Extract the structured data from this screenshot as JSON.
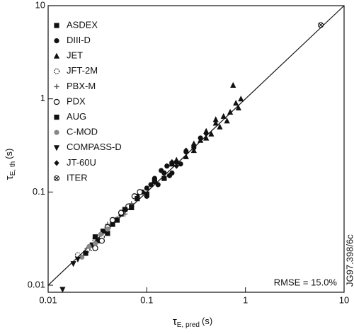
{
  "chart_data": {
    "type": "scatter",
    "x_label": {
      "symbol": "τ",
      "subscript": "E, pred",
      "unit": "(s)"
    },
    "y_label": {
      "symbol": "τ",
      "subscript": "E, th",
      "unit": "(s)"
    },
    "annotations": [
      "RMSE = 15.0%",
      "JG97.398/6c"
    ],
    "xscale": "log",
    "yscale": "log",
    "xlim": [
      0.01,
      10
    ],
    "ylim": [
      0.0084,
      10
    ],
    "xticks": [
      0.01,
      0.1,
      1,
      10
    ],
    "yticks": [
      0.01,
      0.1,
      1,
      10
    ],
    "series": [
      {
        "name": "ASDEX",
        "marker": "square",
        "color": "#111111",
        "x": [
          0.024,
          0.028,
          0.032,
          0.036,
          0.04,
          0.045,
          0.05,
          0.03,
          0.055
        ],
        "values": [
          0.022,
          0.027,
          0.03,
          0.038,
          0.036,
          0.045,
          0.05,
          0.033,
          0.058
        ]
      },
      {
        "name": "DIII-D",
        "marker": "circle",
        "color": "#111111",
        "x": [
          0.06,
          0.07,
          0.08,
          0.09,
          0.1,
          0.11,
          0.12,
          0.13,
          0.15,
          0.17,
          0.2,
          0.22,
          0.25,
          0.3,
          0.14,
          0.16,
          0.18,
          0.1,
          0.12,
          0.35
        ],
        "values": [
          0.065,
          0.07,
          0.09,
          0.1,
          0.11,
          0.12,
          0.13,
          0.12,
          0.16,
          0.15,
          0.21,
          0.2,
          0.27,
          0.3,
          0.17,
          0.19,
          0.16,
          0.09,
          0.14,
          0.38
        ]
      },
      {
        "name": "JET",
        "marker": "triangle",
        "color": "#111111",
        "x": [
          0.2,
          0.25,
          0.3,
          0.35,
          0.4,
          0.45,
          0.5,
          0.55,
          0.6,
          0.7,
          0.8,
          0.85,
          0.9,
          0.5,
          0.4,
          0.65,
          0.3,
          0.75
        ],
        "values": [
          0.22,
          0.24,
          0.33,
          0.36,
          0.45,
          0.42,
          0.55,
          0.5,
          0.65,
          0.72,
          0.9,
          0.8,
          1.0,
          0.6,
          0.38,
          0.58,
          0.28,
          1.4
        ]
      },
      {
        "name": "JFT-2M",
        "marker": "dotted-circle",
        "color": "#111111",
        "x": [
          0.02,
          0.025,
          0.03,
          0.035,
          0.04,
          0.028
        ],
        "values": [
          0.021,
          0.024,
          0.031,
          0.033,
          0.041,
          0.025
        ]
      },
      {
        "name": "PBX-M",
        "marker": "plus",
        "color": "#555555",
        "x": [
          0.04,
          0.05,
          0.06,
          0.07
        ],
        "values": [
          0.045,
          0.052,
          0.058,
          0.075
        ]
      },
      {
        "name": "PDX",
        "marker": "open-circle",
        "color": "#111111",
        "x": [
          0.03,
          0.035,
          0.045,
          0.055,
          0.065,
          0.075,
          0.085,
          0.04
        ],
        "values": [
          0.025,
          0.03,
          0.05,
          0.06,
          0.07,
          0.09,
          0.1,
          0.042
        ]
      },
      {
        "name": "AUG",
        "marker": "square",
        "color": "#111111",
        "x": [
          0.05,
          0.06,
          0.07,
          0.08,
          0.1,
          0.12,
          0.15,
          0.18
        ],
        "values": [
          0.05,
          0.065,
          0.068,
          0.085,
          0.095,
          0.13,
          0.14,
          0.2
        ]
      },
      {
        "name": "C-MOD",
        "marker": "circle",
        "color": "#888888",
        "x": [
          0.022,
          0.026,
          0.03,
          0.034,
          0.04
        ],
        "values": [
          0.02,
          0.026,
          0.028,
          0.035,
          0.04
        ]
      },
      {
        "name": "COMPASS-D",
        "marker": "triangle-down",
        "color": "#111111",
        "x": [
          0.014,
          0.018,
          0.02
        ],
        "values": [
          0.009,
          0.017,
          0.019
        ]
      },
      {
        "name": "JT-60U",
        "marker": "diamond",
        "color": "#111111",
        "x": [
          0.12,
          0.15,
          0.2,
          0.25,
          0.3,
          0.4,
          0.18
        ],
        "values": [
          0.13,
          0.16,
          0.19,
          0.28,
          0.32,
          0.42,
          0.21
        ]
      },
      {
        "name": "ITER",
        "marker": "crossed-circle",
        "color": "#111111",
        "x": [
          5.8
        ],
        "values": [
          6.2
        ]
      }
    ]
  }
}
